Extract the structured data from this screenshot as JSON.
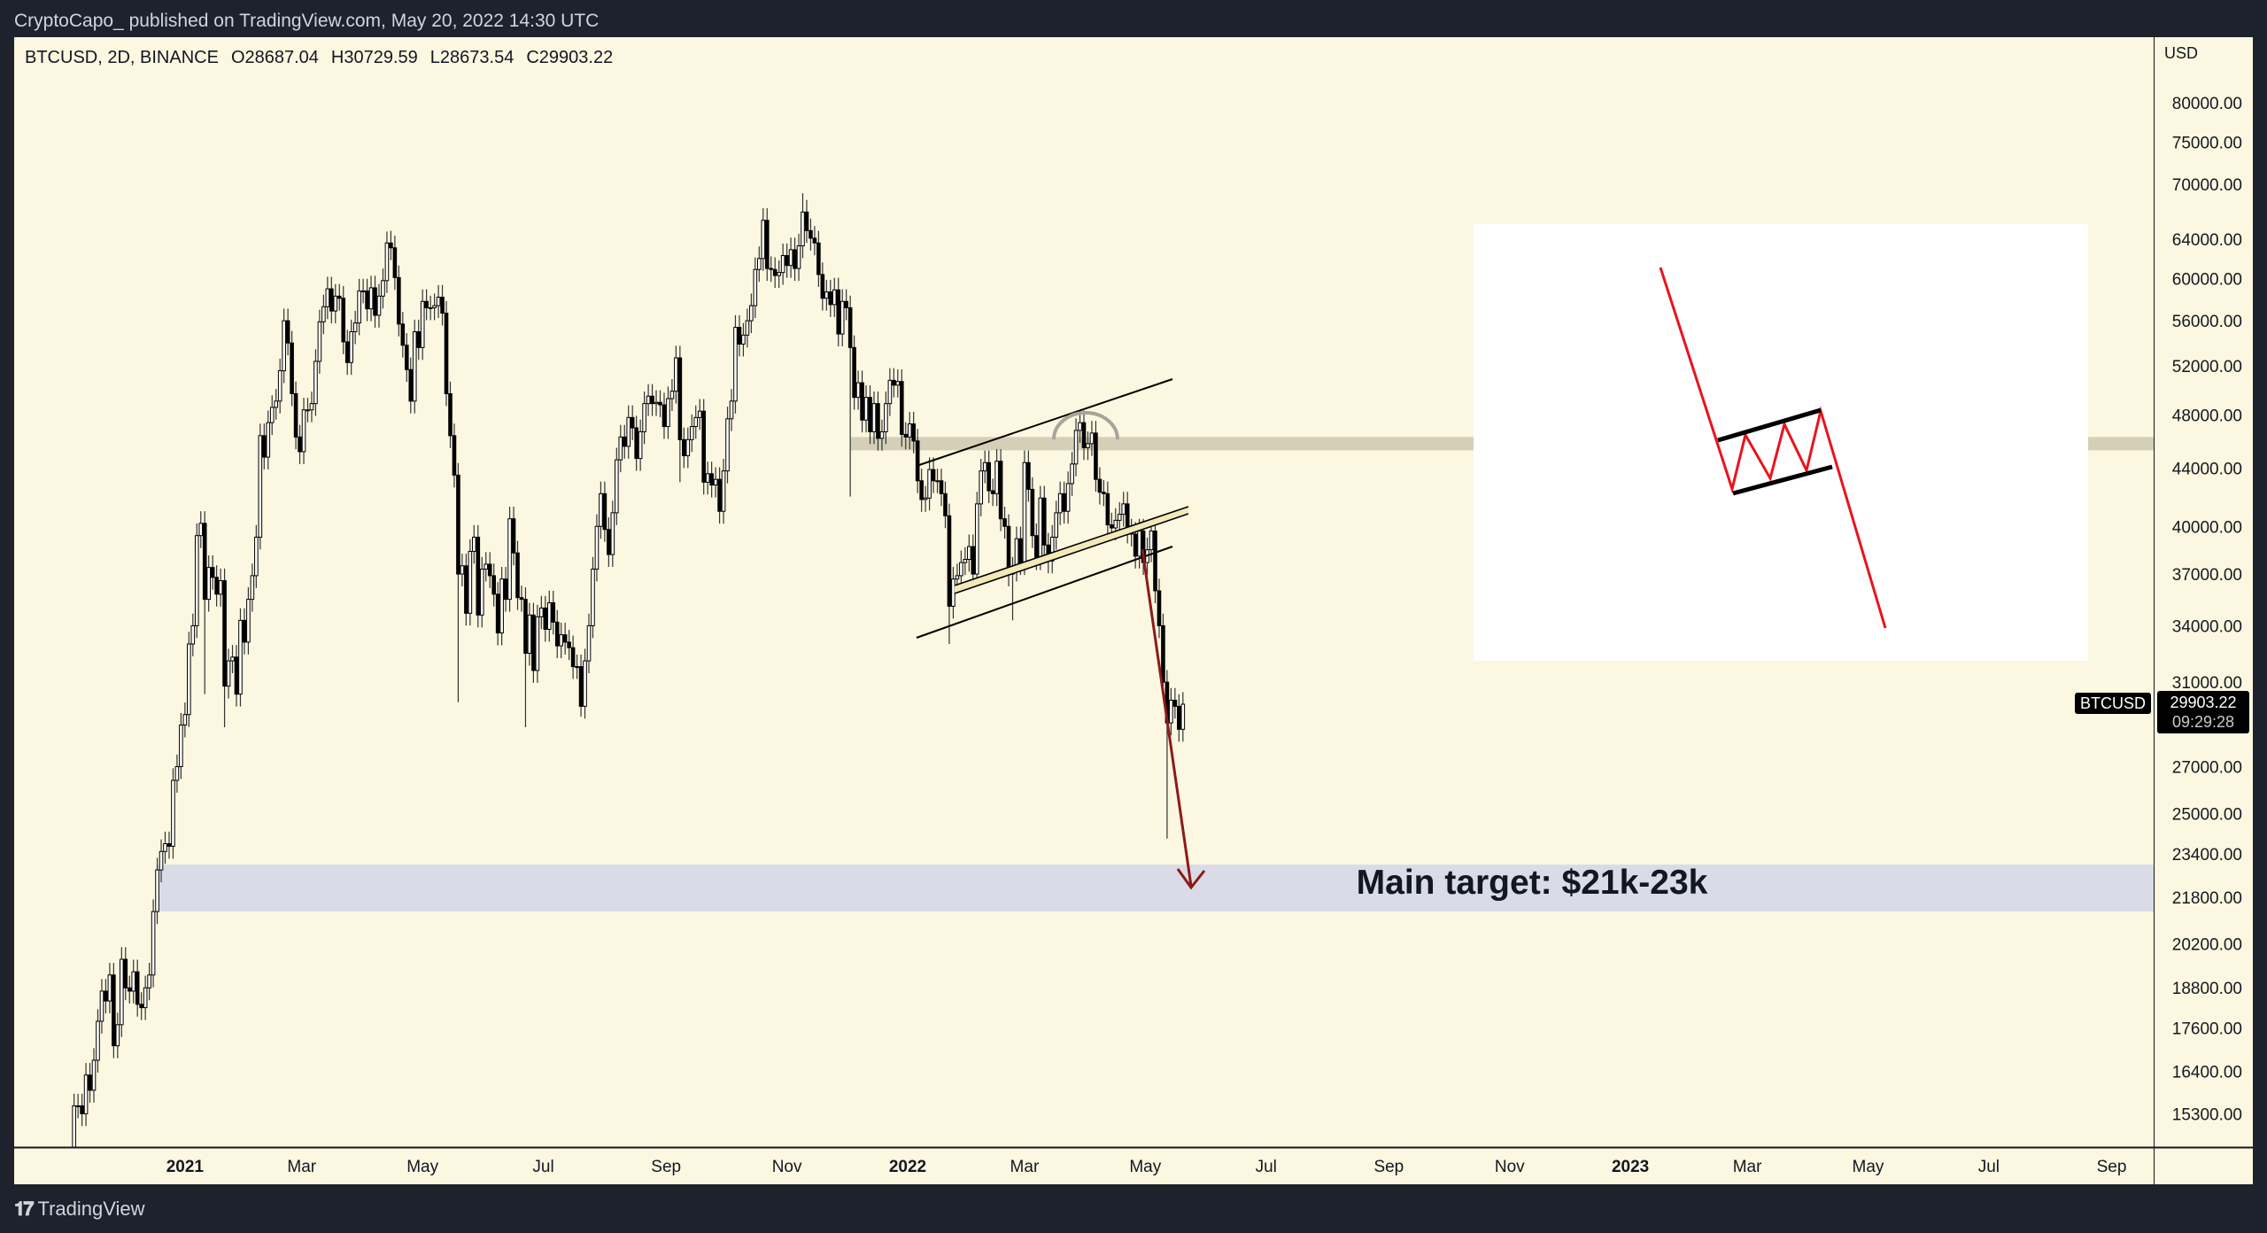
{
  "header": {
    "published": "CryptoCapo_ published on TradingView.com, May 20, 2022 14:30 UTC"
  },
  "legend": {
    "symbol": "BTCUSD, 2D, BINANCE",
    "open": "O28687.04",
    "high": "H30729.59",
    "low": "L28673.54",
    "close": "C29903.22"
  },
  "price_axis": {
    "currency": "USD",
    "badge_symbol": "BTCUSD",
    "last_price": "29903.22",
    "countdown": "09:29:28"
  },
  "footer": {
    "brand": "TradingView",
    "logo": "TV"
  },
  "annotation": {
    "target_text": "Main target: $21k-23k"
  },
  "colors": {
    "background": "#fcf7e0",
    "frame": "#1e222d",
    "target_zone": "#d9dce6",
    "resistance_band": "#d6cfb8",
    "arrow": "#8b1a1a",
    "flag_red": "#e8141c",
    "bear_candle": "#000000",
    "bull_candle": "#ffffff"
  },
  "chart_data": {
    "type": "candlestick",
    "symbol": "BTCUSD",
    "timeframe": "2D",
    "scale": "log",
    "ylim": [
      14300,
      86000
    ],
    "y_ticks": [
      "80000.00",
      "75000.00",
      "70000.00",
      "64000.00",
      "60000.00",
      "56000.00",
      "52000.00",
      "48000.00",
      "44000.00",
      "40000.00",
      "37000.00",
      "34000.00",
      "31000.00",
      "27000.00",
      "25000.00",
      "23400.00",
      "21800.00",
      "20200.00",
      "18800.00",
      "17600.00",
      "16400.00",
      "15300.00"
    ],
    "x_ticks": [
      {
        "label": "2021",
        "date": "2021-01-01",
        "bold": true
      },
      {
        "label": "Mar",
        "date": "2021-03-01"
      },
      {
        "label": "May",
        "date": "2021-05-01"
      },
      {
        "label": "Jul",
        "date": "2021-07-01"
      },
      {
        "label": "Sep",
        "date": "2021-09-01"
      },
      {
        "label": "Nov",
        "date": "2021-11-01"
      },
      {
        "label": "2022",
        "date": "2022-01-01",
        "bold": true
      },
      {
        "label": "Mar",
        "date": "2022-03-01"
      },
      {
        "label": "May",
        "date": "2022-05-01"
      },
      {
        "label": "Jul",
        "date": "2022-07-01"
      },
      {
        "label": "Sep",
        "date": "2022-09-01"
      },
      {
        "label": "Nov",
        "date": "2022-11-01"
      },
      {
        "label": "2023",
        "date": "2023-01-01",
        "bold": true
      },
      {
        "label": "Mar",
        "date": "2023-03-01"
      },
      {
        "label": "May",
        "date": "2023-05-01"
      },
      {
        "label": "Jul",
        "date": "2023-07-01"
      },
      {
        "label": "Sep",
        "date": "2023-09-01"
      }
    ],
    "first_candle_date": "2020-11-04",
    "close": [
      14100,
      15500,
      15500,
      15300,
      16300,
      15900,
      16700,
      17800,
      18700,
      18400,
      19200,
      17100,
      17700,
      19700,
      18800,
      18700,
      19300,
      18300,
      18200,
      18800,
      19200,
      21300,
      22800,
      23500,
      23800,
      23700,
      26400,
      27000,
      28900,
      29400,
      33000,
      34000,
      39400,
      40200,
      35500,
      37400,
      36800,
      35800,
      36600,
      30800,
      32100,
      32300,
      30400,
      34300,
      33100,
      35500,
      36900,
      39300,
      46400,
      44800,
      47400,
      48600,
      49100,
      51600,
      56000,
      54000,
      49700,
      46300,
      45200,
      48400,
      48400,
      48900,
      52400,
      55900,
      57300,
      59000,
      56900,
      58300,
      58100,
      54100,
      52300,
      55000,
      55800,
      58800,
      58800,
      57100,
      59100,
      56500,
      58300,
      59800,
      63600,
      63100,
      60100,
      55700,
      53800,
      51700,
      49100,
      55000,
      53600,
      57800,
      57200,
      57200,
      57400,
      58200,
      56700,
      49700,
      46400,
      43500,
      37000,
      37500,
      34700,
      38400,
      39300,
      34600,
      37300,
      37600,
      36900,
      35800,
      33600,
      36700,
      35500,
      40500,
      38300,
      35600,
      35500,
      32500,
      34600,
      31600,
      34500,
      35000,
      33800,
      35300,
      34200,
      32900,
      33500,
      33100,
      32800,
      31800,
      31800,
      29800,
      32100,
      34000,
      37300,
      40000,
      42200,
      39800,
      38200,
      40900,
      44600,
      46300,
      45600,
      47800,
      47000,
      44700,
      46700,
      48900,
      49500,
      48900,
      49000,
      48800,
      47100,
      49300,
      49900,
      52700,
      46100,
      44900,
      46100,
      47100,
      47800,
      48300,
      43000,
      43600,
      42800,
      43200,
      41000,
      43800,
      47700,
      49100,
      55400,
      53900,
      54700,
      56000,
      57400,
      60900,
      62000,
      66000,
      61000,
      60900,
      60300,
      60600,
      62300,
      61300,
      62900,
      61000,
      63300,
      66900,
      64900,
      64100,
      63600,
      60400,
      58100,
      58700,
      57500,
      58900,
      54800,
      57800,
      57200,
      53600,
      49400,
      50600,
      47600,
      49400,
      46700,
      48900,
      46200,
      46700,
      48900,
      50800,
      50400,
      50700,
      46500,
      46300,
      47300,
      46000,
      43100,
      41800,
      41900,
      43900,
      43100,
      43100,
      42200,
      40700,
      35100,
      36700,
      36900,
      37700,
      37900,
      38700,
      37000,
      41500,
      43800,
      44400,
      42400,
      42200,
      44500,
      40500,
      40000,
      37000,
      37300,
      39200,
      37700,
      44400,
      42500,
      39400,
      38000,
      41900,
      38800,
      37800,
      39300,
      40900,
      42200,
      41000,
      42900,
      44300,
      46800,
      47400,
      45500,
      45800,
      46600,
      43200,
      42300,
      42200,
      40100,
      39900,
      40400,
      40800,
      41500,
      39700,
      39500,
      38100,
      39700,
      37700,
      38500,
      39700,
      36000,
      34000,
      31000,
      29000,
      30100,
      29800,
      28700,
      29903.22
    ],
    "wick_extremes": [
      {
        "date": "2021-01-11",
        "low": 30400
      },
      {
        "date": "2021-01-21",
        "low": 28800
      },
      {
        "date": "2021-04-13",
        "high": 64800
      },
      {
        "date": "2021-05-19",
        "low": 30000
      },
      {
        "date": "2021-06-22",
        "low": 28800
      },
      {
        "date": "2021-07-20",
        "low": 29300
      },
      {
        "date": "2021-09-07",
        "low": 43000
      },
      {
        "date": "2021-11-09",
        "high": 69000
      },
      {
        "date": "2021-12-03",
        "low": 42000
      },
      {
        "date": "2022-01-22",
        "low": 33000
      },
      {
        "date": "2022-02-23",
        "low": 34300
      },
      {
        "date": "2022-03-29",
        "high": 48200
      },
      {
        "date": "2022-05-12",
        "low": 24000
      }
    ],
    "resistance_band": [
      45300,
      46300
    ],
    "target_zone": [
      21300,
      23000
    ]
  }
}
